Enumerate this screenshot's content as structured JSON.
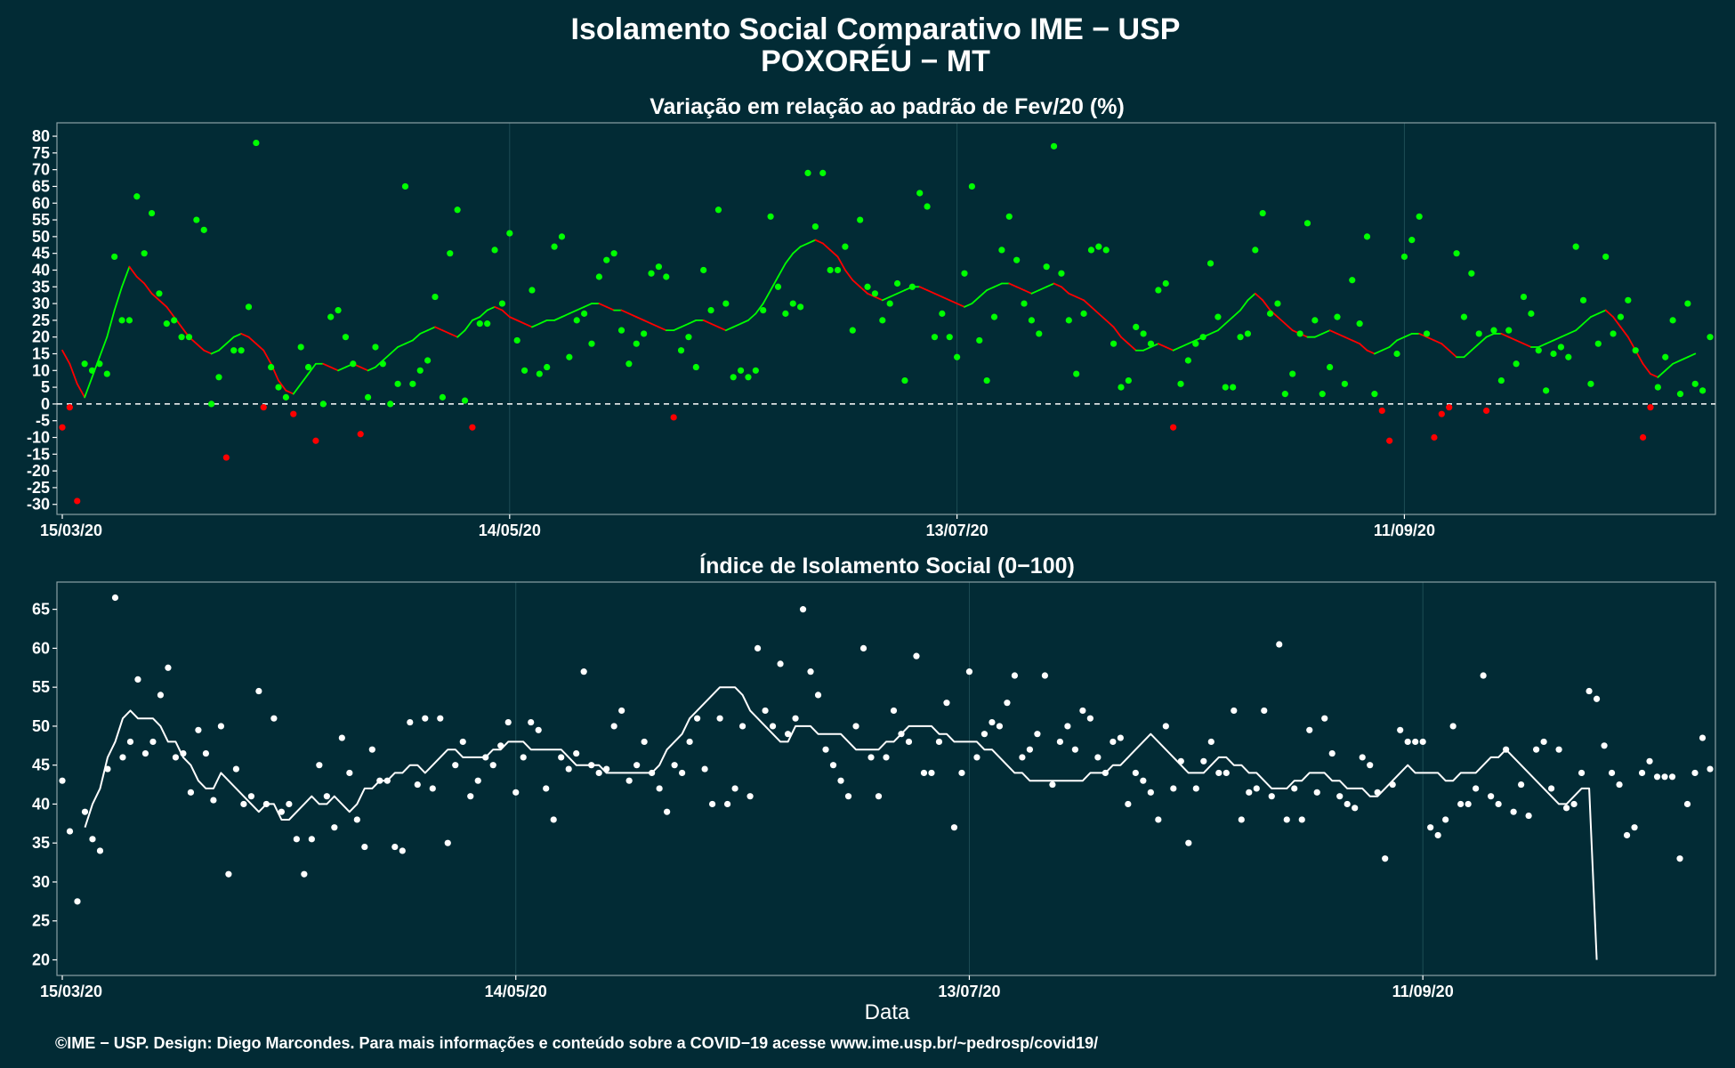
{
  "title_line1": "Isolamento Social Comparativo IME − USP",
  "title_line2": "POXORÉU − MT",
  "footer": "©IME − USP. Design: Diego Marcondes. Para mais informações e conteúdo sobre a COVID−19 acesse www.ime.usp.br/~pedrosp/covid19/",
  "colors": {
    "background": "#022b35",
    "positive": "#00ff00",
    "negative": "#ff0000",
    "index": "#ffffff",
    "grid": "#1e4d55",
    "frame": "#8aa0a5"
  },
  "chart_data": [
    {
      "type": "scatter",
      "title": "Variação em relação ao padrão de Fev/20 (%)",
      "xlabel": "",
      "ylabel": "",
      "x_start": "15/03/20",
      "x_ticks": [
        "15/03/20",
        "14/05/20",
        "13/07/20",
        "11/09/20"
      ],
      "y_ticks": [
        80,
        75,
        70,
        65,
        60,
        55,
        50,
        45,
        40,
        35,
        30,
        25,
        20,
        15,
        10,
        5,
        0,
        -5,
        -10,
        -15,
        -20,
        -25,
        -30
      ],
      "ylim": [
        -33,
        84
      ],
      "reference_line": 0,
      "point_color_rule": "green if value >= 0, red if value < 0",
      "series": [
        {
          "type": "points",
          "values": [
            -7,
            -1,
            -29,
            12,
            10,
            12,
            9,
            44,
            25,
            25,
            62,
            45,
            57,
            33,
            24,
            25,
            20,
            20,
            55,
            52,
            0,
            8,
            -16,
            16,
            16,
            29,
            78,
            -1,
            11,
            5,
            2,
            -3,
            17,
            11,
            -11,
            0,
            26,
            28,
            20,
            12,
            -9,
            2,
            17,
            12,
            0,
            6,
            65,
            6,
            10,
            13,
            32,
            2,
            45,
            58,
            1,
            -7,
            24,
            24,
            46,
            30,
            51,
            19,
            10,
            34,
            9,
            11,
            47,
            50,
            14,
            25,
            27,
            18,
            38,
            43,
            45,
            22,
            12,
            18,
            21,
            39,
            41,
            38,
            -4,
            16,
            20,
            11,
            40,
            28,
            58,
            30,
            8,
            10,
            8,
            10,
            28,
            56,
            35,
            27,
            30,
            29,
            69,
            53,
            69,
            40,
            40,
            47,
            22,
            55,
            35,
            33,
            25,
            30,
            36,
            7,
            35,
            63,
            59,
            20,
            27,
            20,
            14,
            39,
            65,
            19,
            7,
            26,
            46,
            56,
            43,
            30,
            25,
            21,
            41,
            77,
            39,
            25,
            9,
            27,
            46,
            47,
            46,
            18,
            5,
            7,
            23,
            21,
            18,
            34,
            36,
            -7,
            6,
            13,
            18,
            20,
            42,
            26,
            5,
            5,
            20,
            21,
            46,
            57,
            27,
            30,
            3,
            9,
            21,
            54,
            25,
            3,
            11,
            26,
            6,
            37,
            24,
            50,
            3,
            -2,
            -11,
            15,
            44,
            49,
            56,
            21,
            -10,
            -3,
            -1,
            45,
            26,
            39,
            21,
            -2,
            22,
            7,
            22,
            12,
            32,
            27,
            16,
            4,
            15,
            17,
            14,
            47,
            31,
            6,
            18,
            44,
            21,
            26,
            31,
            16,
            -10,
            -1,
            5,
            14,
            25,
            3,
            30,
            6,
            4,
            20
          ]
        },
        {
          "type": "moving_average",
          "start_index": 0,
          "values": [
            16,
            12,
            6,
            2,
            8,
            14,
            20,
            28,
            35,
            41,
            38,
            36,
            33,
            31,
            29,
            26,
            23,
            20,
            18,
            16,
            15,
            16,
            18,
            20,
            21,
            20,
            18,
            16,
            12,
            7,
            4,
            3,
            6,
            9,
            12,
            12,
            11,
            10,
            11,
            12,
            11,
            10,
            11,
            13,
            15,
            17,
            18,
            19,
            21,
            22,
            23,
            22,
            21,
            20,
            22,
            25,
            26,
            28,
            29,
            28,
            26,
            25,
            24,
            23,
            24,
            25,
            25,
            26,
            27,
            28,
            29,
            30,
            30,
            29,
            28,
            28,
            27,
            26,
            25,
            24,
            23,
            22,
            22,
            23,
            24,
            25,
            25,
            24,
            23,
            22,
            23,
            24,
            25,
            27,
            30,
            34,
            38,
            42,
            45,
            47,
            48,
            49,
            48,
            46,
            44,
            40,
            37,
            35,
            33,
            32,
            31,
            32,
            33,
            34,
            35,
            35,
            34,
            33,
            32,
            31,
            30,
            29,
            30,
            32,
            34,
            35,
            36,
            36,
            35,
            34,
            33,
            34,
            35,
            36,
            35,
            33,
            32,
            31,
            29,
            27,
            25,
            23,
            20,
            18,
            16,
            16,
            17,
            18,
            17,
            16,
            17,
            18,
            19,
            20,
            21,
            22,
            24,
            26,
            28,
            31,
            33,
            31,
            28,
            26,
            24,
            22,
            21,
            20,
            20,
            21,
            22,
            21,
            20,
            19,
            18,
            16,
            15,
            16,
            17,
            19,
            20,
            21,
            21,
            20,
            19,
            18,
            16,
            14,
            14,
            16,
            18,
            20,
            21,
            21,
            20,
            19,
            18,
            17,
            17,
            18,
            19,
            20,
            21,
            22,
            24,
            26,
            27,
            28,
            26,
            23,
            20,
            16,
            12,
            9,
            8,
            10,
            12,
            13,
            14,
            15
          ]
        }
      ]
    },
    {
      "type": "scatter",
      "title": "Índice de Isolamento Social (0−100)",
      "xlabel": "Data",
      "ylabel": "",
      "x_start": "15/03/20",
      "x_ticks": [
        "15/03/20",
        "14/05/20",
        "13/07/20",
        "11/09/20"
      ],
      "y_ticks": [
        65,
        60,
        55,
        50,
        45,
        40,
        35,
        30,
        25,
        20
      ],
      "ylim": [
        18,
        68.5
      ],
      "series": [
        {
          "type": "points",
          "values": [
            43,
            36.5,
            27.5,
            39,
            35.5,
            34,
            44.5,
            66.5,
            46,
            48,
            56,
            46.5,
            48,
            54,
            57.5,
            46,
            46.5,
            41.5,
            49.5,
            46.5,
            40.5,
            50,
            31,
            44.5,
            40,
            41,
            54.5,
            40,
            51,
            39,
            40,
            35.5,
            31,
            35.5,
            45,
            41,
            37,
            48.5,
            44,
            38,
            34.5,
            47,
            43,
            43,
            34.5,
            34,
            50.5,
            42.5,
            51,
            42,
            51,
            35,
            45,
            48,
            41,
            43,
            46,
            45,
            47.5,
            50.5,
            41.5,
            46,
            50.5,
            49.5,
            42,
            38,
            46,
            44.5,
            46.5,
            57,
            45,
            44,
            44.5,
            50,
            52,
            43,
            45,
            48,
            44,
            42,
            39,
            45,
            44,
            48,
            51,
            44.5,
            40,
            51,
            40,
            42,
            50,
            41,
            60,
            52,
            50,
            58,
            49,
            51,
            65,
            57,
            54,
            47,
            45,
            43,
            41,
            50,
            60,
            46,
            41,
            46,
            52,
            49,
            48,
            59,
            44,
            44,
            48,
            53,
            37,
            44,
            57,
            46,
            49,
            50.5,
            50,
            53,
            56.5,
            46,
            47,
            49,
            56.5,
            42.5,
            48,
            50,
            47,
            52,
            51,
            46,
            44,
            48,
            48.5,
            40,
            44,
            43,
            41.5,
            38,
            50,
            42,
            45.5,
            35,
            42,
            45.5,
            48,
            44,
            44,
            52,
            38,
            41.5,
            42,
            52,
            41,
            60.5,
            38,
            42,
            38,
            49.5,
            41.5,
            51,
            46.5,
            41,
            40,
            39.5,
            46,
            45,
            41.5,
            33,
            42.5,
            49.5,
            48,
            48,
            48,
            37,
            36,
            38,
            50,
            40,
            40,
            42,
            56.5,
            41,
            40,
            47,
            39,
            42.5,
            38.5,
            47,
            48,
            42,
            47,
            39.5,
            40,
            44,
            54.5,
            53.5,
            47.5,
            44,
            42.5,
            36,
            37,
            44,
            45.5,
            43.5,
            43.5,
            43.5,
            33,
            40,
            44,
            48.5,
            44.5
          ]
        },
        {
          "type": "moving_average",
          "start_index": 3,
          "values": [
            37,
            40,
            42,
            46,
            48,
            51,
            52,
            51,
            51,
            51,
            50,
            48,
            48,
            46,
            45,
            43,
            42,
            42,
            44,
            43,
            42,
            41,
            40,
            39,
            40,
            40,
            38,
            38,
            39,
            40,
            41,
            40,
            40,
            41,
            40,
            39,
            40,
            42,
            42,
            43,
            43,
            44,
            44,
            45,
            45,
            44,
            45,
            46,
            47,
            47,
            46,
            46,
            46,
            46,
            47,
            47,
            48,
            48,
            48,
            47,
            47,
            47,
            47,
            47,
            46,
            45,
            45,
            45,
            45,
            44,
            44,
            44,
            44,
            44,
            44,
            44,
            45,
            47,
            48,
            49,
            51,
            52,
            53,
            54,
            55,
            55,
            55,
            54,
            52,
            51,
            50,
            49,
            48,
            48,
            50,
            50,
            50,
            49,
            49,
            49,
            49,
            48,
            47,
            47,
            47,
            47,
            48,
            48,
            49,
            50,
            50,
            50,
            50,
            49,
            49,
            48,
            48,
            48,
            48,
            47,
            47,
            46,
            45,
            44,
            44,
            43,
            43,
            43,
            43,
            43,
            43,
            43,
            43,
            44,
            44,
            44,
            45,
            45,
            46,
            47,
            48,
            49,
            48,
            47,
            46,
            45,
            44,
            44,
            44,
            45,
            46,
            46,
            45,
            45,
            44,
            44,
            43,
            42,
            42,
            42,
            43,
            43,
            44,
            44,
            44,
            43,
            43,
            42,
            42,
            42,
            41,
            41,
            42,
            43,
            44,
            45,
            44,
            44,
            44,
            44,
            43,
            43,
            44,
            44,
            44,
            45,
            46,
            46,
            47,
            46,
            45,
            44,
            43,
            42,
            41,
            40,
            40,
            41,
            42,
            42,
            20
          ]
        }
      ]
    }
  ]
}
